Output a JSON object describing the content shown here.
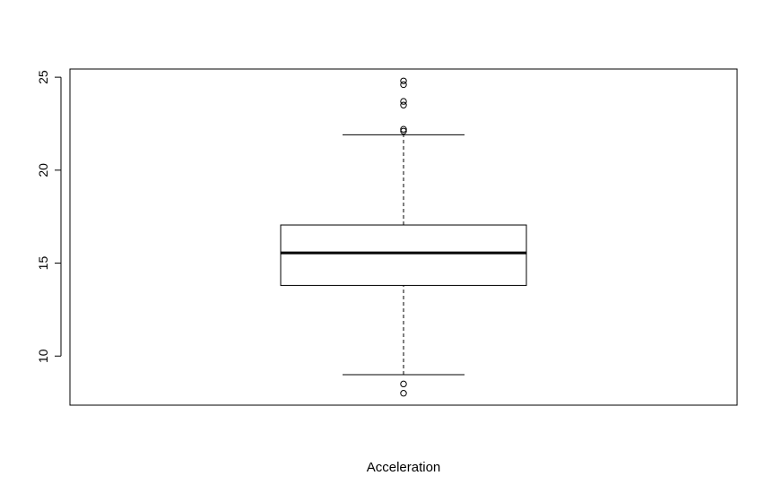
{
  "chart_data": {
    "type": "boxplot",
    "xlabel": "Acceleration",
    "ylabel": "",
    "title": "",
    "ylim": [
      7.36,
      25.44
    ],
    "yticks": [
      10,
      15,
      20,
      25
    ],
    "ytick_labels": [
      "10",
      "15",
      "20",
      "25"
    ],
    "grid": false,
    "box": {
      "whisker_low": 9.0,
      "q1": 13.8,
      "median": 15.55,
      "q3": 17.05,
      "whisker_high": 21.9
    },
    "outliers": [
      8.0,
      8.5,
      22.1,
      22.2,
      23.5,
      23.7,
      24.6,
      24.8
    ]
  }
}
